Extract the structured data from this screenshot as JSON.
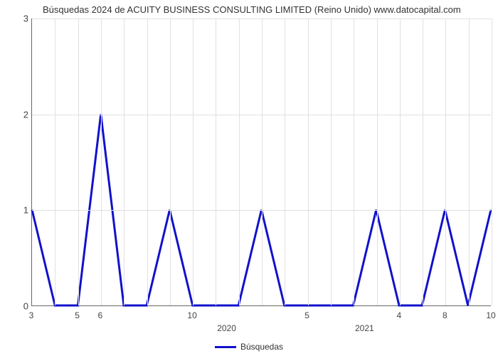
{
  "chart": {
    "type": "line",
    "title": "Búsquedas 2024 de ACUITY BUSINESS CONSULTING LIMITED (Reino Unido) www.datocapital.com",
    "title_fontsize": 13,
    "title_color": "#333333",
    "background_color": "#ffffff",
    "grid_color": "#e0e0e0",
    "axis_color": "#666666",
    "line_color": "#1111cc",
    "line_width": 3,
    "ylim": [
      0,
      3
    ],
    "ytick_step": 1,
    "yticks": [
      0,
      1,
      2,
      3
    ],
    "x_points": 21,
    "y_values": [
      1,
      0,
      0,
      2,
      0,
      0,
      1,
      0,
      0,
      0,
      1,
      0,
      0,
      0,
      0,
      1,
      0,
      0,
      1,
      0,
      1
    ],
    "x_tick_labels_row1": [
      {
        "idx": 0,
        "label": "3"
      },
      {
        "idx": 2,
        "label": "5"
      },
      {
        "idx": 3,
        "label": "6"
      },
      {
        "idx": 7,
        "label": "10"
      },
      {
        "idx": 12,
        "label": "5"
      },
      {
        "idx": 16,
        "label": "4"
      },
      {
        "idx": 18,
        "label": "8"
      },
      {
        "idx": 20,
        "label": "10"
      }
    ],
    "x_tick_labels_row2": [
      {
        "idx": 8.5,
        "label": "2020"
      },
      {
        "idx": 14.5,
        "label": "2021"
      }
    ],
    "legend_label": "Búsquedas",
    "label_fontsize": 12
  }
}
